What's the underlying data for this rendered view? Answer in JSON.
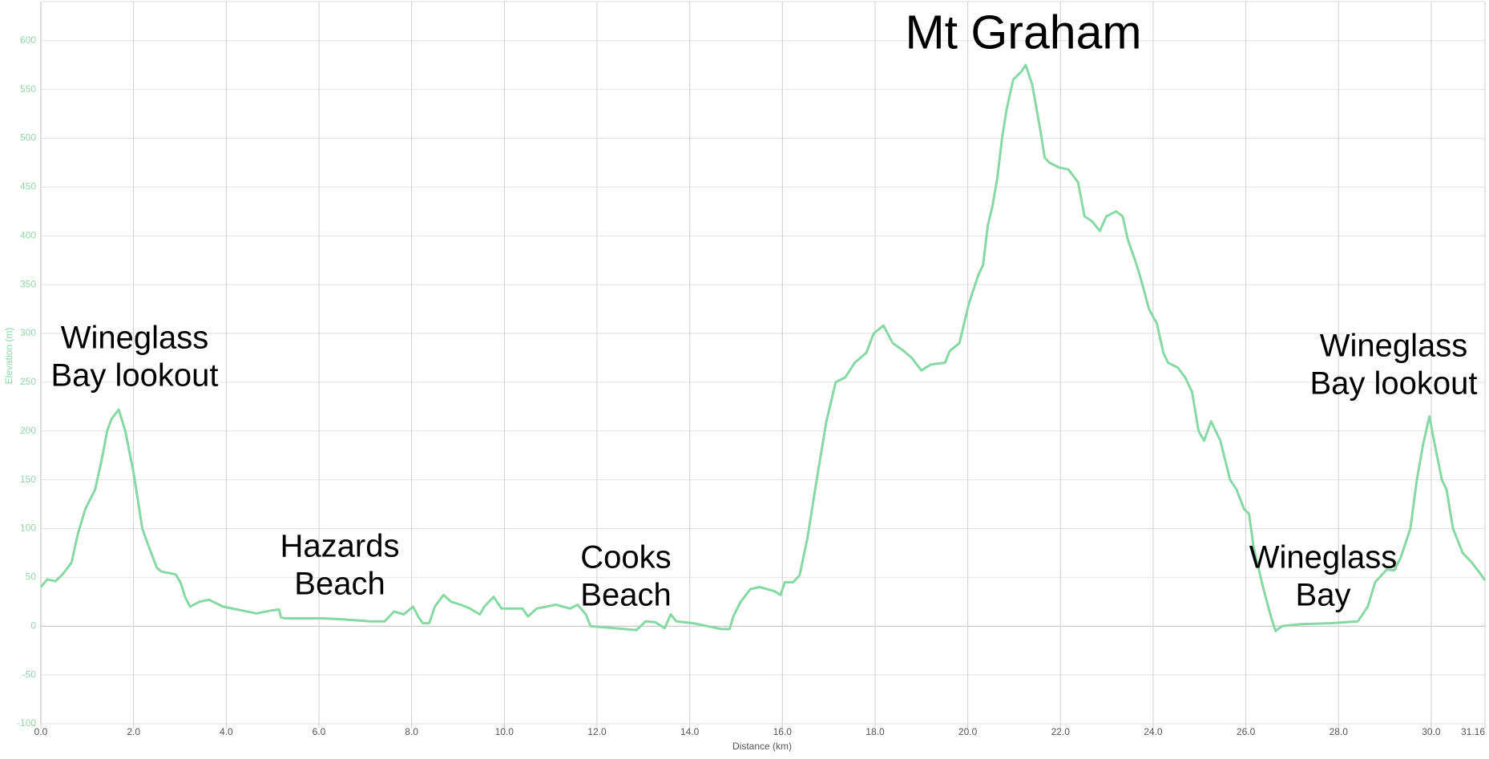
{
  "chart_data": {
    "type": "line",
    "xlabel": "Distance (km)",
    "ylabel": "Elevation (m)",
    "color": "#86d9a3",
    "grid": true,
    "xlim": [
      0,
      31.16
    ],
    "ylim": [
      -100,
      640
    ],
    "xticks": [
      {
        "value": 0,
        "label": "0.0"
      },
      {
        "value": 2,
        "label": "2.0"
      },
      {
        "value": 4,
        "label": "4.0"
      },
      {
        "value": 6,
        "label": "6.0"
      },
      {
        "value": 8,
        "label": "8.0"
      },
      {
        "value": 10,
        "label": "10.0"
      },
      {
        "value": 12,
        "label": "12.0"
      },
      {
        "value": 14,
        "label": "14.0"
      },
      {
        "value": 16,
        "label": "16.0"
      },
      {
        "value": 18,
        "label": "18.0"
      },
      {
        "value": 20,
        "label": "20.0"
      },
      {
        "value": 22,
        "label": "22.0"
      },
      {
        "value": 24,
        "label": "24.0"
      },
      {
        "value": 26,
        "label": "26.0"
      },
      {
        "value": 28,
        "label": "28.0"
      },
      {
        "value": 30,
        "label": "30.0"
      },
      31.16
    ],
    "yticks": [
      -100,
      -50,
      0,
      50,
      100,
      150,
      200,
      250,
      300,
      350,
      400,
      450,
      500,
      550,
      600
    ],
    "annotations": [
      {
        "lines": [
          "Wineglass",
          "Bay lookout"
        ]
      },
      {
        "lines": [
          "Hazards",
          "Beach"
        ]
      },
      {
        "lines": [
          "Cooks",
          "Beach"
        ]
      },
      {
        "lines": [
          "Mt Graham"
        ]
      },
      {
        "lines": [
          "Wineglass",
          "Bay"
        ]
      },
      {
        "lines": [
          "Wineglass",
          "Bay lookout"
        ]
      }
    ],
    "x": [
      0,
      0.14,
      0.31,
      0.45,
      0.66,
      0.8,
      0.96,
      1.17,
      1.31,
      1.43,
      1.52,
      1.68,
      1.82,
      1.99,
      2.09,
      2.19,
      2.34,
      2.5,
      2.6,
      2.91,
      3.01,
      3.11,
      3.22,
      3.42,
      3.63,
      3.93,
      4.24,
      4.65,
      4.96,
      5.14,
      5.18,
      5.27,
      6.09,
      6.5,
      7.11,
      7.42,
      7.62,
      7.83,
      8.03,
      8.14,
      8.24,
      8.38,
      8.5,
      8.69,
      8.85,
      9.06,
      9.26,
      9.47,
      9.57,
      9.77,
      9.94,
      10.39,
      10.51,
      10.7,
      11.11,
      11.42,
      11.58,
      11.76,
      11.86,
      12.85,
      13.05,
      13.26,
      13.46,
      13.59,
      13.71,
      14.08,
      14.69,
      14.86,
      14.94,
      15.1,
      15.31,
      15.51,
      15.82,
      15.96,
      16.05,
      16.23,
      16.37,
      16.54,
      16.74,
      16.95,
      17.15,
      17.36,
      17.56,
      17.81,
      17.97,
      18.18,
      18.38,
      18.59,
      18.79,
      19.0,
      19.2,
      19.51,
      19.61,
      19.82,
      20.02,
      20.23,
      20.33,
      20.43,
      20.53,
      20.64,
      20.74,
      20.84,
      20.98,
      21.15,
      21.25,
      21.39,
      21.56,
      21.66,
      21.76,
      21.97,
      22.17,
      22.38,
      22.52,
      22.68,
      22.85,
      22.99,
      23.2,
      23.34,
      23.46,
      23.61,
      23.71,
      23.91,
      24.08,
      24.22,
      24.32,
      24.53,
      24.69,
      24.84,
      24.98,
      25.1,
      25.25,
      25.45,
      25.66,
      25.8,
      25.96,
      26.07,
      26.17,
      26.37,
      26.54,
      26.64,
      26.78,
      27.19,
      27.81,
      28.42,
      28.63,
      28.79,
      29.04,
      29.2,
      29.34,
      29.55,
      29.69,
      29.82,
      29.96,
      30.06,
      30.23,
      30.33,
      30.47,
      30.68,
      30.88,
      31.04,
      31.16
    ],
    "values": [
      40,
      48,
      46,
      52,
      65,
      95,
      120,
      140,
      170,
      200,
      212,
      222,
      200,
      160,
      130,
      100,
      80,
      60,
      56,
      53,
      45,
      30,
      20,
      25,
      27,
      20,
      17,
      13,
      16,
      17,
      9,
      8,
      8,
      7,
      5,
      5,
      15,
      12,
      20,
      10,
      3,
      3,
      20,
      32,
      25,
      22,
      18,
      12,
      20,
      30,
      18,
      18,
      10,
      18,
      22,
      18,
      22,
      12,
      0,
      -4,
      5,
      4,
      -2,
      12,
      5,
      3,
      -3,
      -3,
      10,
      25,
      38,
      40,
      36,
      32,
      45,
      45,
      52,
      90,
      150,
      210,
      250,
      255,
      270,
      280,
      300,
      308,
      290,
      283,
      275,
      262,
      268,
      270,
      282,
      290,
      330,
      360,
      370,
      410,
      430,
      460,
      500,
      530,
      560,
      568,
      575,
      555,
      510,
      480,
      475,
      470,
      468,
      455,
      420,
      415,
      405,
      420,
      425,
      420,
      395,
      375,
      360,
      325,
      310,
      280,
      270,
      265,
      255,
      240,
      200,
      190,
      210,
      190,
      150,
      140,
      120,
      115,
      80,
      40,
      10,
      -5,
      0,
      2,
      3,
      5,
      20,
      45,
      58,
      57,
      70,
      100,
      150,
      185,
      215,
      190,
      150,
      140,
      100,
      75,
      65,
      55,
      47
    ]
  }
}
